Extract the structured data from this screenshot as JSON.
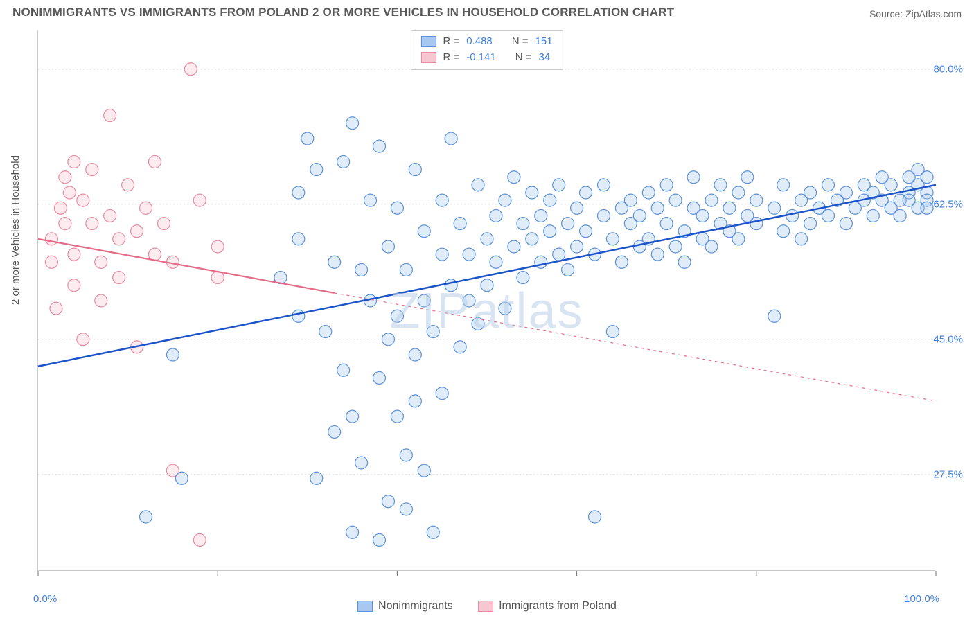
{
  "header": {
    "title": "NONIMMIGRANTS VS IMMIGRANTS FROM POLAND 2 OR MORE VEHICLES IN HOUSEHOLD CORRELATION CHART",
    "source": "Source: ZipAtlas.com"
  },
  "watermark": "ZIPatlas",
  "y_axis_label": "2 or more Vehicles in Household",
  "chart": {
    "type": "scatter",
    "background_color": "#ffffff",
    "grid_color": "#d8d8d8",
    "axis_color": "#c9c9c9",
    "tick_label_color": "#3f7fe0",
    "xlim": [
      0,
      100
    ],
    "ylim": [
      15,
      85
    ],
    "xticks": [
      0,
      20,
      40,
      60,
      80,
      100
    ],
    "yticks": [
      27.5,
      45.0,
      62.5,
      80.0
    ],
    "ytick_labels": [
      "27.5%",
      "45.0%",
      "62.5%",
      "80.0%"
    ],
    "xtick_labels_ends": [
      "0.0%",
      "100.0%"
    ],
    "marker_radius": 9,
    "marker_opacity": 0.35,
    "series": {
      "blue": {
        "label": "Nonimmigrants",
        "fill": "#a9c8ef",
        "stroke": "#5b91d8",
        "line_color": "#1b54c9",
        "line_width": 2.5,
        "R": "0.488",
        "N": "151",
        "trend": {
          "x1": 0,
          "y1": 41.5,
          "x2": 100,
          "y2": 65.0
        },
        "points": [
          [
            12,
            22
          ],
          [
            16,
            27
          ],
          [
            15,
            43
          ],
          [
            27,
            53
          ],
          [
            29,
            48
          ],
          [
            29,
            64
          ],
          [
            29,
            58
          ],
          [
            30,
            71
          ],
          [
            31,
            67
          ],
          [
            31,
            27
          ],
          [
            32,
            46
          ],
          [
            33,
            33
          ],
          [
            33,
            55
          ],
          [
            34,
            68
          ],
          [
            34,
            41
          ],
          [
            35,
            73
          ],
          [
            35,
            35
          ],
          [
            35,
            20
          ],
          [
            36,
            54
          ],
          [
            36,
            29
          ],
          [
            37,
            63
          ],
          [
            37,
            50
          ],
          [
            38,
            40
          ],
          [
            38,
            19
          ],
          [
            38,
            70
          ],
          [
            39,
            45
          ],
          [
            39,
            24
          ],
          [
            39,
            57
          ],
          [
            40,
            35
          ],
          [
            40,
            48
          ],
          [
            40,
            62
          ],
          [
            41,
            30
          ],
          [
            41,
            54
          ],
          [
            41,
            23
          ],
          [
            42,
            67
          ],
          [
            42,
            43
          ],
          [
            42,
            37
          ],
          [
            43,
            59
          ],
          [
            43,
            50
          ],
          [
            43,
            28
          ],
          [
            44,
            20
          ],
          [
            44,
            46
          ],
          [
            45,
            56
          ],
          [
            45,
            63
          ],
          [
            45,
            38
          ],
          [
            46,
            71
          ],
          [
            46,
            52
          ],
          [
            47,
            44
          ],
          [
            47,
            60
          ],
          [
            48,
            56
          ],
          [
            48,
            50
          ],
          [
            49,
            65
          ],
          [
            49,
            47
          ],
          [
            50,
            58
          ],
          [
            50,
            52
          ],
          [
            51,
            61
          ],
          [
            51,
            55
          ],
          [
            52,
            63
          ],
          [
            52,
            49
          ],
          [
            53,
            57
          ],
          [
            53,
            66
          ],
          [
            54,
            60
          ],
          [
            54,
            53
          ],
          [
            55,
            64
          ],
          [
            55,
            58
          ],
          [
            56,
            55
          ],
          [
            56,
            61
          ],
          [
            57,
            59
          ],
          [
            57,
            63
          ],
          [
            58,
            56
          ],
          [
            58,
            65
          ],
          [
            59,
            60
          ],
          [
            59,
            54
          ],
          [
            60,
            62
          ],
          [
            60,
            57
          ],
          [
            61,
            64
          ],
          [
            61,
            59
          ],
          [
            62,
            22
          ],
          [
            62,
            56
          ],
          [
            63,
            61
          ],
          [
            63,
            65
          ],
          [
            64,
            58
          ],
          [
            64,
            46
          ],
          [
            65,
            62
          ],
          [
            65,
            55
          ],
          [
            66,
            60
          ],
          [
            66,
            63
          ],
          [
            67,
            57
          ],
          [
            67,
            61
          ],
          [
            68,
            64
          ],
          [
            68,
            58
          ],
          [
            69,
            56
          ],
          [
            69,
            62
          ],
          [
            70,
            60
          ],
          [
            70,
            65
          ],
          [
            71,
            57
          ],
          [
            71,
            63
          ],
          [
            72,
            59
          ],
          [
            72,
            55
          ],
          [
            73,
            62
          ],
          [
            73,
            66
          ],
          [
            74,
            58
          ],
          [
            74,
            61
          ],
          [
            75,
            63
          ],
          [
            75,
            57
          ],
          [
            76,
            60
          ],
          [
            76,
            65
          ],
          [
            77,
            59
          ],
          [
            77,
            62
          ],
          [
            78,
            58
          ],
          [
            78,
            64
          ],
          [
            79,
            61
          ],
          [
            79,
            66
          ],
          [
            80,
            60
          ],
          [
            80,
            63
          ],
          [
            82,
            48
          ],
          [
            82,
            62
          ],
          [
            83,
            59
          ],
          [
            83,
            65
          ],
          [
            84,
            61
          ],
          [
            85,
            63
          ],
          [
            85,
            58
          ],
          [
            86,
            64
          ],
          [
            86,
            60
          ],
          [
            87,
            62
          ],
          [
            88,
            61
          ],
          [
            88,
            65
          ],
          [
            89,
            63
          ],
          [
            90,
            60
          ],
          [
            90,
            64
          ],
          [
            91,
            62
          ],
          [
            92,
            63
          ],
          [
            92,
            65
          ],
          [
            93,
            61
          ],
          [
            93,
            64
          ],
          [
            94,
            63
          ],
          [
            94,
            66
          ],
          [
            95,
            62
          ],
          [
            95,
            65
          ],
          [
            96,
            63
          ],
          [
            96,
            61
          ],
          [
            97,
            64
          ],
          [
            97,
            66
          ],
          [
            97,
            63
          ],
          [
            98,
            62
          ],
          [
            98,
            65
          ],
          [
            98,
            67
          ],
          [
            99,
            64
          ],
          [
            99,
            63
          ],
          [
            99,
            66
          ],
          [
            99,
            62
          ]
        ]
      },
      "pink": {
        "label": "Immigrants from Poland",
        "fill": "#f6c7d1",
        "stroke": "#e98ba1",
        "line_color": "#e56a88",
        "line_width": 2.2,
        "dash_extra": "4,5",
        "R": "-0.141",
        "N": "34",
        "trend_solid": {
          "x1": 0,
          "y1": 58.0,
          "x2": 33,
          "y2": 51.0
        },
        "trend_dash": {
          "x1": 33,
          "y1": 51.0,
          "x2": 100,
          "y2": 37.0
        },
        "points": [
          [
            1.5,
            58
          ],
          [
            1.5,
            55
          ],
          [
            2,
            49
          ],
          [
            2.5,
            62
          ],
          [
            3,
            66
          ],
          [
            3,
            60
          ],
          [
            3.5,
            64
          ],
          [
            4,
            52
          ],
          [
            4,
            68
          ],
          [
            4,
            56
          ],
          [
            5,
            63
          ],
          [
            5,
            45
          ],
          [
            6,
            60
          ],
          [
            6,
            67
          ],
          [
            7,
            55
          ],
          [
            7,
            50
          ],
          [
            8,
            74
          ],
          [
            8,
            61
          ],
          [
            9,
            58
          ],
          [
            9,
            53
          ],
          [
            10,
            65
          ],
          [
            11,
            59
          ],
          [
            11,
            44
          ],
          [
            12,
            62
          ],
          [
            13,
            56
          ],
          [
            13,
            68
          ],
          [
            14,
            60
          ],
          [
            15,
            28
          ],
          [
            15,
            55
          ],
          [
            17,
            80
          ],
          [
            18,
            63
          ],
          [
            18,
            19
          ],
          [
            20,
            57
          ],
          [
            20,
            53
          ]
        ]
      }
    }
  },
  "stats_box": {
    "R_label": "R =",
    "N_label": "N ="
  },
  "legend": {
    "items": [
      "blue",
      "pink"
    ]
  }
}
